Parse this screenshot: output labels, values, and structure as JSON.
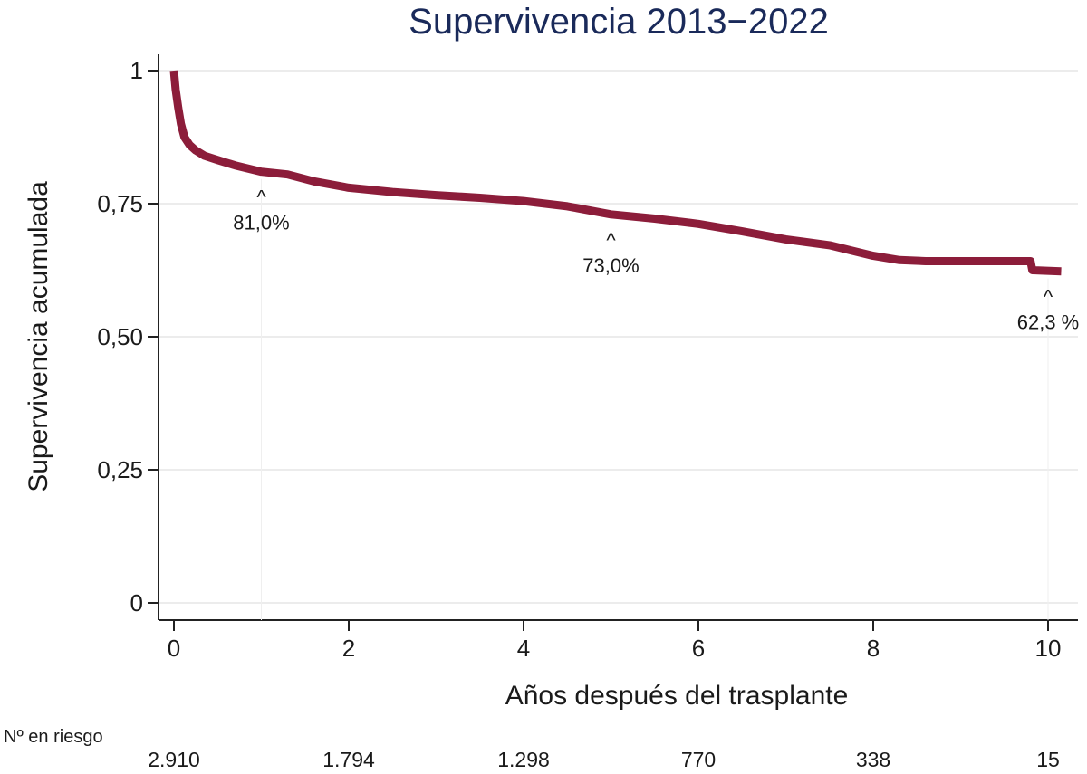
{
  "chart_data": {
    "type": "line",
    "title": "Supervivencia 2013−2022",
    "xlabel": "Años después del trasplante",
    "ylabel": "Supervivencia acumulada",
    "xlim": [
      0,
      10.2
    ],
    "ylim": [
      0,
      1
    ],
    "x_ticks": [
      0,
      2,
      4,
      6,
      8,
      10
    ],
    "x_tick_labels": [
      "0",
      "2",
      "4",
      "6",
      "8",
      "10"
    ],
    "y_ticks": [
      0,
      0.25,
      0.5,
      0.75,
      1
    ],
    "y_tick_labels": [
      "0",
      "0,25",
      "0,50",
      "0,75",
      "1"
    ],
    "grid": "horizontal",
    "series": [
      {
        "color": "#8c1d3a",
        "x": [
          0,
          0.02,
          0.05,
          0.08,
          0.12,
          0.18,
          0.25,
          0.35,
          0.5,
          0.7,
          1.0,
          1.3,
          1.6,
          2.0,
          2.5,
          3.0,
          3.5,
          4.0,
          4.5,
          5.0,
          5.5,
          6.0,
          6.5,
          7.0,
          7.5,
          8.0,
          8.3,
          8.6,
          9.0,
          9.5,
          9.8,
          9.82,
          10.15
        ],
        "y": [
          1.0,
          0.965,
          0.93,
          0.9,
          0.875,
          0.86,
          0.85,
          0.84,
          0.832,
          0.822,
          0.81,
          0.805,
          0.792,
          0.78,
          0.772,
          0.766,
          0.761,
          0.755,
          0.745,
          0.73,
          0.722,
          0.712,
          0.698,
          0.683,
          0.672,
          0.652,
          0.644,
          0.642,
          0.642,
          0.642,
          0.642,
          0.625,
          0.623
        ]
      }
    ],
    "annotations": [
      {
        "x": 1.0,
        "y": 0.81,
        "caret": "^",
        "label": "81,0%"
      },
      {
        "x": 5.0,
        "y": 0.73,
        "caret": "^",
        "label": "73,0%"
      },
      {
        "x": 10.0,
        "y": 0.623,
        "caret": "^",
        "label": "62,3 %"
      }
    ],
    "risk_table": {
      "label": "Nº en riesgo",
      "x": [
        0,
        2,
        4,
        6,
        8,
        10
      ],
      "values": [
        "2.910",
        "1.794",
        "1.298",
        "770",
        "338",
        "15"
      ]
    }
  }
}
